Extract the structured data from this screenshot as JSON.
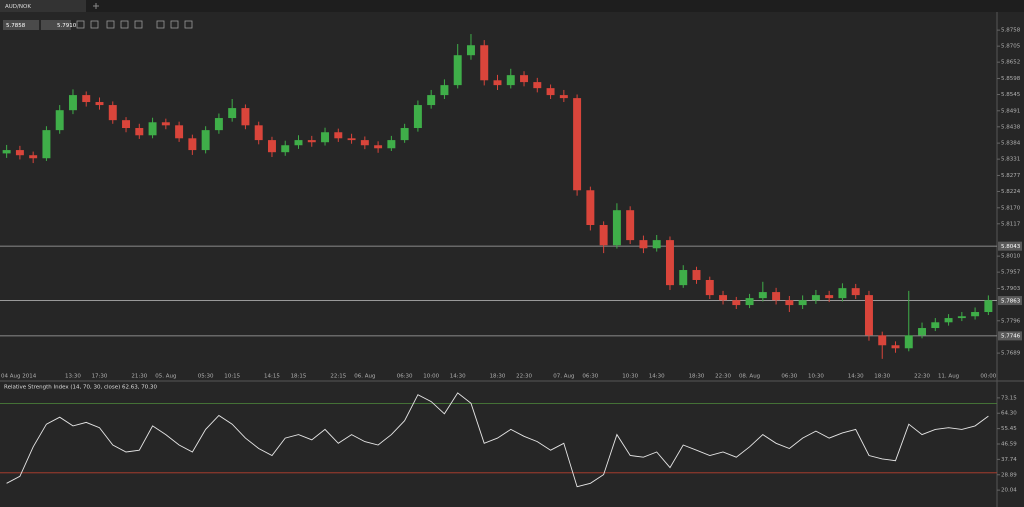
{
  "tab": {
    "title": "AUD/NOK"
  },
  "toolbar": {
    "bid": "5.7858",
    "ask": "5.7910"
  },
  "chart_data": [
    {
      "type": "candlestick",
      "categories": [
        null,
        "04 Aug 2014",
        null,
        null,
        null,
        "13:30",
        null,
        "17:30",
        null,
        null,
        "21:30",
        null,
        "05. Aug",
        null,
        null,
        "05:30",
        null,
        "10:15",
        null,
        null,
        "14:15",
        null,
        "18:15",
        null,
        null,
        "22:15",
        null,
        "06. Aug",
        null,
        null,
        "06:30",
        null,
        "10:00",
        null,
        "14:30",
        null,
        null,
        "18:30",
        null,
        "22:30",
        null,
        null,
        "07. Aug",
        null,
        "06:30",
        null,
        null,
        "10:30",
        null,
        "14:30",
        null,
        null,
        "18:30",
        null,
        "22:30",
        null,
        "08. Aug",
        null,
        null,
        "06:30",
        null,
        "10:30",
        null,
        null,
        "14:30",
        null,
        "18:30",
        null,
        null,
        "22:30",
        null,
        "11. Aug",
        null,
        null,
        "00:00"
      ],
      "open": [
        5.835,
        5.8361,
        5.8344,
        5.8334,
        5.8427,
        5.8493,
        5.8543,
        5.852,
        5.851,
        5.846,
        5.8434,
        5.841,
        5.8453,
        5.8443,
        5.84,
        5.8361,
        5.8427,
        5.8467,
        5.85,
        5.8443,
        5.8394,
        5.8354,
        5.8377,
        5.8394,
        5.8387,
        5.842,
        5.84,
        5.8394,
        5.8377,
        5.8367,
        5.8394,
        5.8434,
        5.851,
        5.8543,
        5.8576,
        5.8675,
        5.8708,
        5.8592,
        5.8576,
        5.8609,
        5.8586,
        5.8566,
        5.8543,
        5.8533,
        5.8228,
        5.8113,
        5.8046,
        5.8162,
        5.8063,
        5.8036,
        5.8063,
        5.7914,
        5.7964,
        5.7931,
        5.7881,
        5.7864,
        5.7848,
        5.7871,
        5.7891,
        5.7864,
        5.7848,
        5.7864,
        5.7881,
        5.7871,
        5.7904,
        5.7881,
        5.7748,
        5.7715,
        5.7705,
        5.7748,
        5.7772,
        5.7791,
        5.7805,
        5.7811,
        5.7825
      ],
      "high": [
        5.8378,
        5.8375,
        5.8356,
        5.844,
        5.851,
        5.8562,
        5.8555,
        5.8535,
        5.8522,
        5.847,
        5.8448,
        5.8468,
        5.8465,
        5.8455,
        5.8412,
        5.844,
        5.8482,
        5.853,
        5.8512,
        5.8455,
        5.8405,
        5.8392,
        5.841,
        5.8408,
        5.8435,
        5.8432,
        5.8415,
        5.8406,
        5.839,
        5.8408,
        5.8448,
        5.8525,
        5.856,
        5.8595,
        5.8712,
        5.8745,
        5.8725,
        5.861,
        5.863,
        5.8622,
        5.86,
        5.8578,
        5.856,
        5.8545,
        5.824,
        5.8125,
        5.8185,
        5.8175,
        5.8078,
        5.808,
        5.8075,
        5.798,
        5.7975,
        5.7942,
        5.7895,
        5.7875,
        5.7885,
        5.7925,
        5.7905,
        5.7878,
        5.788,
        5.7898,
        5.7895,
        5.792,
        5.7918,
        5.7895,
        5.776,
        5.7728,
        5.7895,
        5.779,
        5.7805,
        5.7818,
        5.7825,
        5.784,
        5.788
      ],
      "low": [
        5.8335,
        5.833,
        5.8318,
        5.8325,
        5.8415,
        5.848,
        5.8505,
        5.8495,
        5.8448,
        5.842,
        5.8398,
        5.84,
        5.843,
        5.8388,
        5.8345,
        5.835,
        5.8415,
        5.8455,
        5.843,
        5.838,
        5.8338,
        5.8342,
        5.8365,
        5.8372,
        5.8376,
        5.8388,
        5.8382,
        5.8364,
        5.8352,
        5.8358,
        5.8385,
        5.8422,
        5.8498,
        5.853,
        5.8565,
        5.866,
        5.8575,
        5.856,
        5.8565,
        5.8572,
        5.8552,
        5.853,
        5.852,
        5.821,
        5.8095,
        5.802,
        5.8035,
        5.805,
        5.802,
        5.8025,
        5.7898,
        5.7905,
        5.7918,
        5.7868,
        5.785,
        5.7835,
        5.7838,
        5.786,
        5.785,
        5.7825,
        5.7835,
        5.7852,
        5.7858,
        5.786,
        5.7868,
        5.773,
        5.767,
        5.769,
        5.7695,
        5.7738,
        5.7762,
        5.778,
        5.7795,
        5.78,
        5.7815
      ],
      "close": [
        5.8361,
        5.8344,
        5.8334,
        5.8427,
        5.8493,
        5.8543,
        5.852,
        5.851,
        5.846,
        5.8434,
        5.841,
        5.8453,
        5.8443,
        5.84,
        5.8361,
        5.8427,
        5.8467,
        5.85,
        5.8443,
        5.8394,
        5.8354,
        5.8377,
        5.8394,
        5.8387,
        5.842,
        5.84,
        5.8394,
        5.8377,
        5.8367,
        5.8394,
        5.8434,
        5.851,
        5.8543,
        5.8576,
        5.8675,
        5.8708,
        5.8592,
        5.8576,
        5.8609,
        5.8586,
        5.8566,
        5.8543,
        5.8533,
        5.8228,
        5.8113,
        5.8046,
        5.8162,
        5.8063,
        5.8036,
        5.8063,
        5.7914,
        5.7964,
        5.7931,
        5.7881,
        5.7864,
        5.7848,
        5.7871,
        5.7891,
        5.7864,
        5.7848,
        5.7864,
        5.7881,
        5.7871,
        5.7904,
        5.7881,
        5.7748,
        5.7715,
        5.7705,
        5.7748,
        5.7772,
        5.7791,
        5.7805,
        5.7811,
        5.7825,
        5.7864
      ],
      "up_color": "#3fae49",
      "down_color": "#d9453b",
      "ylim": [
        5.76,
        5.8818
      ],
      "yticks": [
        5.8758,
        5.8705,
        5.8652,
        5.8598,
        5.8545,
        5.8491,
        5.8438,
        5.8384,
        5.8331,
        5.8277,
        5.8224,
        {
          "value": 5.817,
          "label": "5.8170"
        },
        5.8117,
        {
          "value": 5.801,
          "label": "5.8010"
        },
        5.7957,
        5.7903,
        5.7796,
        5.7689
      ],
      "levels": [
        5.8043,
        5.7863,
        5.7746
      ]
    },
    {
      "type": "line",
      "title": "Relative Strength Index (14, 70, 30, close) 62.63, 70.30",
      "values": [
        24,
        28,
        45,
        58,
        62,
        57,
        59,
        56,
        46,
        42,
        43,
        57,
        52,
        46,
        42,
        55,
        63,
        58,
        50,
        44,
        40,
        50,
        52,
        49,
        55,
        47,
        52,
        48,
        46,
        52,
        60,
        75,
        71,
        64,
        76,
        70,
        47,
        50,
        55,
        51,
        48,
        43,
        47,
        22,
        24,
        29,
        52,
        40,
        39,
        42,
        33,
        46,
        43,
        40,
        42,
        39,
        45,
        52,
        47,
        44,
        50,
        54,
        50,
        53,
        55,
        40,
        38,
        37,
        58,
        52,
        55,
        56,
        55,
        57,
        62.63
      ],
      "color": "#e6e6e6",
      "ylim": [
        10.33,
        82.86
      ],
      "yticks": [
        73.15,
        {
          "value": 64.3,
          "label": "64.30"
        },
        55.45,
        46.59,
        37.74,
        28.89,
        20.04
      ],
      "levels": [
        {
          "value": 70,
          "color": "#4f8a3c"
        },
        {
          "value": 30,
          "color": "#b8412f"
        }
      ]
    }
  ]
}
